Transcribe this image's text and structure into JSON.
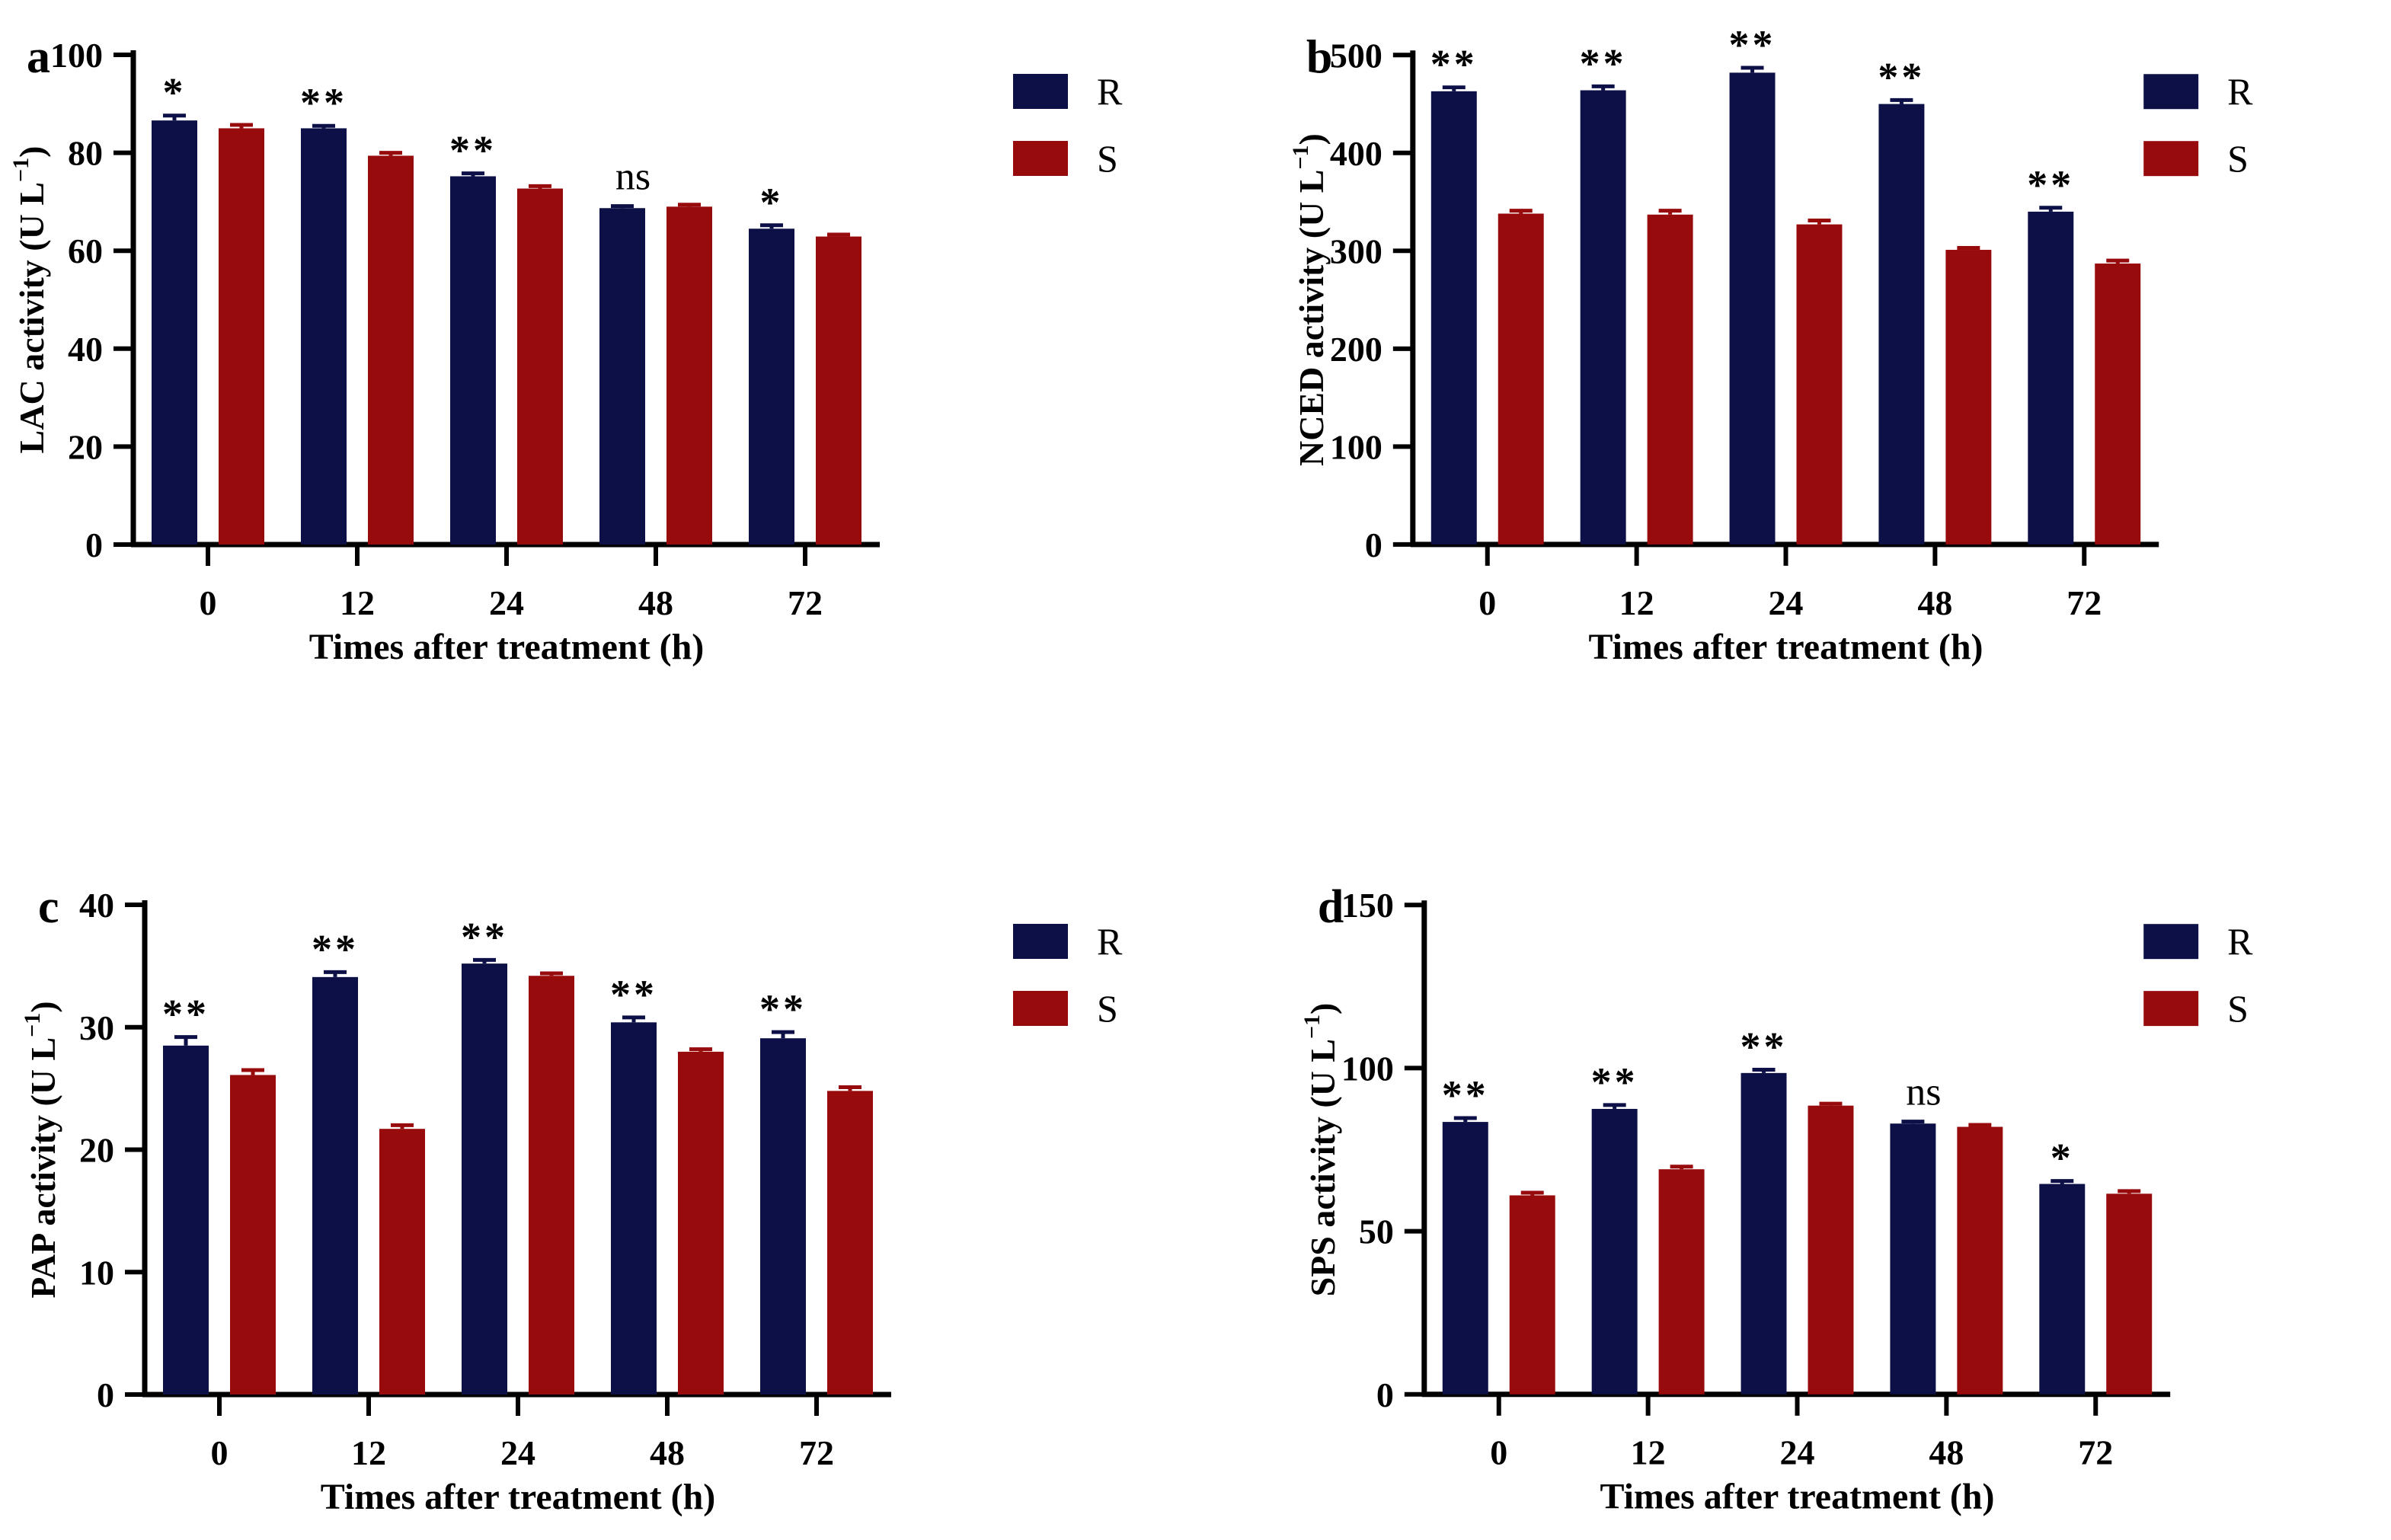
{
  "figure": {
    "xlabel": "Times after treatment (h)",
    "categories": [
      "0",
      "12",
      "24",
      "48",
      "72"
    ],
    "legend": [
      {
        "label": "R",
        "color": "#0c1047"
      },
      {
        "label": "S",
        "color": "#980b0d"
      }
    ],
    "colors": {
      "R": "#0c1047",
      "S": "#980b0d",
      "axis": "#000000"
    }
  },
  "chart_data": [
    {
      "type": "bar",
      "panel_label": "a",
      "ylabel": "LAC activity (U L−1)",
      "ylabel_parts": {
        "prefix": "LAC activity (U L",
        "sup": "−1",
        "suffix": ")"
      },
      "xlabel": "Times after treatment (h)",
      "categories": [
        "0",
        "12",
        "24",
        "48",
        "72"
      ],
      "ylim": [
        0,
        100
      ],
      "yticks": [
        0,
        20,
        40,
        60,
        80,
        100
      ],
      "grid": false,
      "legend_position": "right-top",
      "series": [
        {
          "name": "R",
          "color": "#0c1047",
          "values": [
            86.6,
            85.0,
            75.2,
            68.7,
            64.5
          ],
          "errors": [
            1.0,
            0.5,
            0.6,
            0.4,
            0.7
          ]
        },
        {
          "name": "S",
          "color": "#980b0d",
          "values": [
            85.0,
            79.4,
            72.7,
            69.0,
            62.9
          ],
          "errors": [
            0.7,
            0.6,
            0.5,
            0.4,
            0.4
          ]
        }
      ],
      "significance": [
        "*",
        "**",
        "**",
        "ns",
        "*"
      ]
    },
    {
      "type": "bar",
      "panel_label": "b",
      "ylabel": "NCED activity (U L−1)",
      "ylabel_parts": {
        "prefix": "NCED activity (U L",
        "sup": "−1",
        "suffix": ")"
      },
      "xlabel": "Times after treatment (h)",
      "categories": [
        "0",
        "12",
        "24",
        "48",
        "72"
      ],
      "ylim": [
        0,
        500
      ],
      "yticks": [
        0,
        100,
        200,
        300,
        400,
        500
      ],
      "grid": false,
      "legend_position": "right-top",
      "series": [
        {
          "name": "R",
          "color": "#0c1047",
          "values": [
            463,
            464,
            482,
            450,
            340
          ],
          "errors": [
            4,
            4,
            5,
            4,
            4
          ]
        },
        {
          "name": "S",
          "color": "#980b0d",
          "values": [
            338,
            337,
            327,
            301,
            287
          ],
          "errors": [
            3,
            4,
            4,
            2,
            3
          ]
        }
      ],
      "significance": [
        "**",
        "**",
        "**",
        "**",
        "**"
      ]
    },
    {
      "type": "bar",
      "panel_label": "c",
      "ylabel": "PAP activity (U L−1)",
      "ylabel_parts": {
        "prefix": "PAP activity (U L",
        "sup": "−1",
        "suffix": ")"
      },
      "xlabel": "Times after treatment (h)",
      "categories": [
        "0",
        "12",
        "24",
        "48",
        "72"
      ],
      "ylim": [
        0,
        40
      ],
      "yticks": [
        0,
        10,
        20,
        30,
        40
      ],
      "grid": false,
      "legend_position": "right-top",
      "series": [
        {
          "name": "R",
          "color": "#0c1047",
          "values": [
            28.5,
            34.1,
            35.2,
            30.4,
            29.1
          ],
          "errors": [
            0.7,
            0.4,
            0.3,
            0.4,
            0.5
          ]
        },
        {
          "name": "S",
          "color": "#980b0d",
          "values": [
            26.1,
            21.7,
            34.2,
            28.0,
            24.8
          ],
          "errors": [
            0.4,
            0.3,
            0.2,
            0.2,
            0.3
          ]
        }
      ],
      "significance": [
        "**",
        "**",
        "**",
        "**",
        "**"
      ]
    },
    {
      "type": "bar",
      "panel_label": "d",
      "ylabel": "SPS activity (U L−1)",
      "ylabel_parts": {
        "prefix": "SPS activity (U L",
        "sup": "−1",
        "suffix": ")"
      },
      "xlabel": "Times after treatment (h)",
      "categories": [
        "0",
        "12",
        "24",
        "48",
        "72"
      ],
      "ylim": [
        0,
        150
      ],
      "yticks": [
        0,
        50,
        100,
        150
      ],
      "grid": false,
      "legend_position": "right-top",
      "series": [
        {
          "name": "R",
          "color": "#0c1047",
          "values": [
            83.5,
            87.5,
            98.5,
            83.0,
            64.5
          ],
          "errors": [
            1.2,
            1.2,
            1.0,
            0.6,
            0.9
          ]
        },
        {
          "name": "S",
          "color": "#980b0d",
          "values": [
            61.0,
            69.0,
            88.5,
            82.0,
            61.5
          ],
          "errors": [
            0.8,
            0.8,
            0.6,
            0.6,
            0.8
          ]
        }
      ],
      "significance": [
        "**",
        "**",
        "**",
        "ns",
        "*"
      ]
    }
  ]
}
